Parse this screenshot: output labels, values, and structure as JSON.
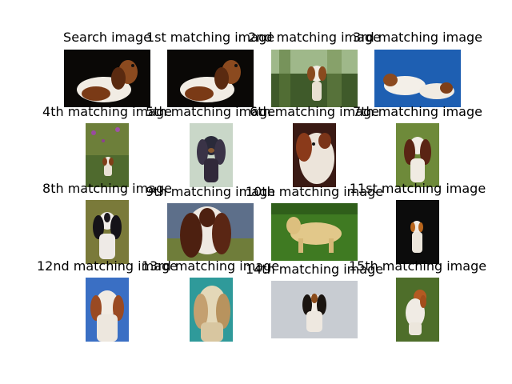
{
  "figure": {
    "titles": [
      "Search image",
      "1st matching image",
      "2nd matching image",
      "3rd matching image",
      "4th matching image",
      "5th matching image",
      "6th matching image",
      "7th matching image",
      "8th matching image",
      "9th matching image",
      "10th matching image",
      "11st matching image",
      "12nd matching image",
      "13rd matching image",
      "14th matching image",
      "15th matching image"
    ]
  }
}
